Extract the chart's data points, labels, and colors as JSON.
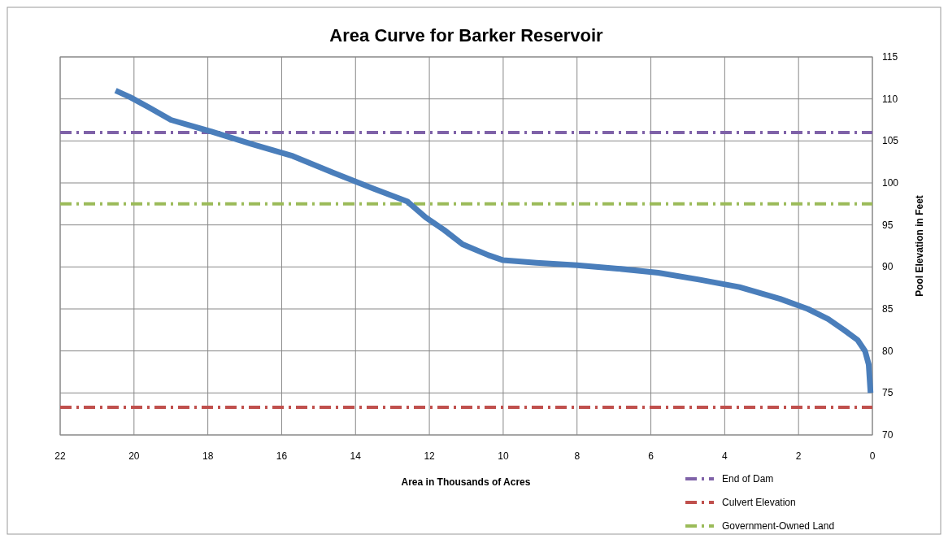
{
  "chart_data": {
    "type": "line",
    "title": "Area Curve for Barker Reservoir",
    "xlabel": "Area in Thousands of Acres",
    "ylabel": "Pool Elevation in Feet",
    "xlim": [
      22,
      0
    ],
    "xticks": [
      22,
      20,
      18,
      16,
      14,
      12,
      10,
      8,
      6,
      4,
      2,
      0
    ],
    "ylim": [
      70,
      115
    ],
    "yticks": [
      70,
      75,
      80,
      85,
      90,
      95,
      100,
      105,
      110,
      115
    ],
    "grid": true,
    "legend": "bottom right",
    "line_style": "solid",
    "series": [
      {
        "color": "#4a7ebb",
        "x": [
          0.05,
          0.1,
          0.2,
          0.4,
          0.77,
          1.2,
          1.75,
          2.5,
          3.6,
          4.7,
          5.8,
          6.9,
          8.0,
          9.1,
          10.0,
          10.4,
          11.1,
          11.6,
          12.1,
          12.6,
          13.5,
          14.6,
          15.7,
          16.8,
          17.9,
          19.0,
          19.6,
          20.1,
          20.5
        ],
        "values": [
          75,
          78.4,
          80,
          81.3,
          82.5,
          83.8,
          85,
          86.2,
          87.6,
          88.5,
          89.3,
          89.8,
          90.2,
          90.5,
          90.8,
          91.4,
          92.7,
          94.4,
          95.9,
          97.8,
          99.3,
          101.2,
          103.2,
          104.6,
          106.1,
          107.5,
          109,
          110.2,
          111
        ]
      }
    ],
    "ref_lines": [
      {
        "axis": "y",
        "value": 106,
        "label": "End of Dam",
        "color": "#7f62a8",
        "line_style": "dashdot"
      },
      {
        "axis": "y",
        "value": 73.3,
        "label": "Culvert Elevation",
        "color": "#c0504d",
        "line_style": "dashdot"
      },
      {
        "axis": "y",
        "value": 97.5,
        "label": "Government-Owned Land",
        "color": "#9bbb59",
        "line_style": "dashdot"
      }
    ]
  }
}
